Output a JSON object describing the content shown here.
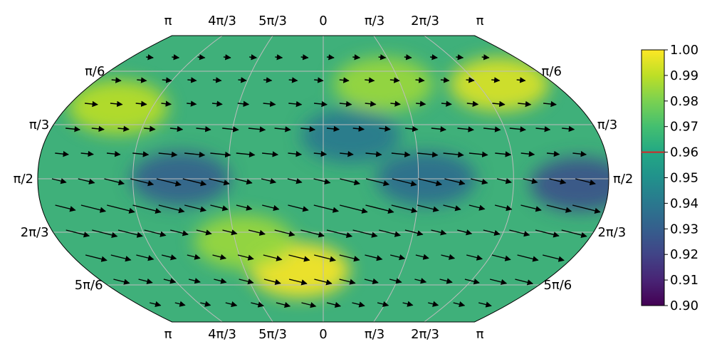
{
  "chart_data": {
    "type": "heatmap",
    "title": "",
    "projection": "robinson-like (global map)",
    "lon_tick_labels_top": [
      "π",
      "4π/3",
      "5π/3",
      "0",
      "π/3",
      "2π/3",
      "π"
    ],
    "lon_tick_labels_bottom": [
      "π",
      "4π/3",
      "5π/3",
      "0",
      "π/3",
      "2π/3",
      "π"
    ],
    "lat_tick_labels_left": [
      "π/6",
      "π/3",
      "π/2",
      "2π/3",
      "5π/6"
    ],
    "lat_tick_labels_right": [
      "π/6",
      "π/3",
      "π/2",
      "2π/3",
      "5π/6"
    ],
    "grid": true,
    "colormap": "viridis",
    "colorbar": {
      "range": [
        0.9,
        1.0
      ],
      "ticks": [
        "0.90",
        "0.91",
        "0.92",
        "0.93",
        "0.94",
        "0.95",
        "0.96",
        "0.97",
        "0.98",
        "0.99",
        "1.00"
      ],
      "marker_value": 0.96,
      "marker_color": "#d62728",
      "placement": "right"
    },
    "field_peaks": [
      {
        "lon_frac": 0.1,
        "lat_frac": 0.25,
        "value": 0.99
      },
      {
        "lon_frac": 0.88,
        "lat_frac": 0.17,
        "value": 0.995
      },
      {
        "lon_frac": 0.63,
        "lat_frac": 0.17,
        "value": 0.985
      },
      {
        "lon_frac": 0.45,
        "lat_frac": 0.82,
        "value": 1.0
      },
      {
        "lon_frac": 0.35,
        "lat_frac": 0.72,
        "value": 0.985
      },
      {
        "lon_frac": 0.25,
        "lat_frac": 0.5,
        "value": 0.93
      },
      {
        "lon_frac": 0.95,
        "lat_frac": 0.52,
        "value": 0.925
      },
      {
        "lon_frac": 0.68,
        "lat_frac": 0.5,
        "value": 0.935
      },
      {
        "lon_frac": 0.55,
        "lat_frac": 0.35,
        "value": 0.94
      }
    ],
    "vector_field": {
      "description": "arrows pointing roughly eastward, longer near the equator and lower-middle latitudes",
      "dominant_direction": "east / east-southeast"
    }
  }
}
